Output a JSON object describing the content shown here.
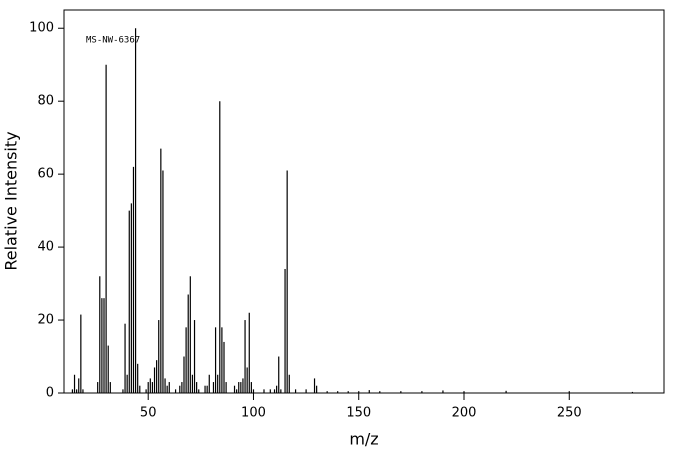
{
  "chart_data": {
    "type": "spectrum",
    "annotation": "MS-NW-6367",
    "xlabel": "m/z",
    "ylabel": "Relative Intensity",
    "color": "#000000",
    "x": [
      14,
      15,
      16,
      17,
      18,
      19,
      26,
      27,
      28,
      29,
      30,
      31,
      32,
      38,
      39,
      40,
      41,
      42,
      43,
      44,
      45,
      46,
      49,
      50,
      51,
      52,
      53,
      54,
      55,
      56,
      57,
      58,
      59,
      60,
      63,
      65,
      66,
      67,
      68,
      69,
      70,
      71,
      72,
      73,
      74,
      77,
      78,
      79,
      81,
      82,
      83,
      84,
      85,
      86,
      87,
      91,
      92,
      93,
      94,
      95,
      96,
      97,
      98,
      99,
      100,
      105,
      108,
      110,
      111,
      112,
      113,
      115,
      116,
      117,
      120,
      125,
      129,
      130,
      135,
      140,
      145,
      150,
      155,
      160,
      170,
      180,
      190,
      200,
      220,
      250,
      280
    ],
    "values": [
      1,
      5,
      1,
      4,
      21.5,
      1,
      3,
      32,
      26,
      26,
      90,
      13,
      3,
      1,
      19,
      5,
      50,
      52,
      62,
      100,
      8,
      2,
      1,
      3,
      4,
      3,
      7,
      9,
      20,
      67,
      61,
      4,
      2,
      3,
      1,
      2,
      3,
      10,
      18,
      27,
      32,
      5,
      20,
      3,
      1,
      2,
      2,
      5,
      3,
      18,
      5,
      80,
      18,
      14,
      3,
      2,
      1,
      3,
      3,
      4,
      20,
      7,
      22,
      3,
      1,
      1,
      1,
      1,
      2,
      10,
      1,
      34,
      61,
      5,
      1,
      1,
      4,
      2,
      0.5,
      0.5,
      0.5,
      0.5,
      0.8,
      0.5,
      0.5,
      0.5,
      0.7,
      0.5,
      0.6,
      0.5,
      0.3
    ],
    "xlim": [
      10,
      295
    ],
    "ylim": [
      0,
      105
    ],
    "xticks": [
      50,
      100,
      150,
      200,
      250
    ],
    "yticks": [
      0,
      20,
      40,
      60,
      80,
      100
    ]
  }
}
